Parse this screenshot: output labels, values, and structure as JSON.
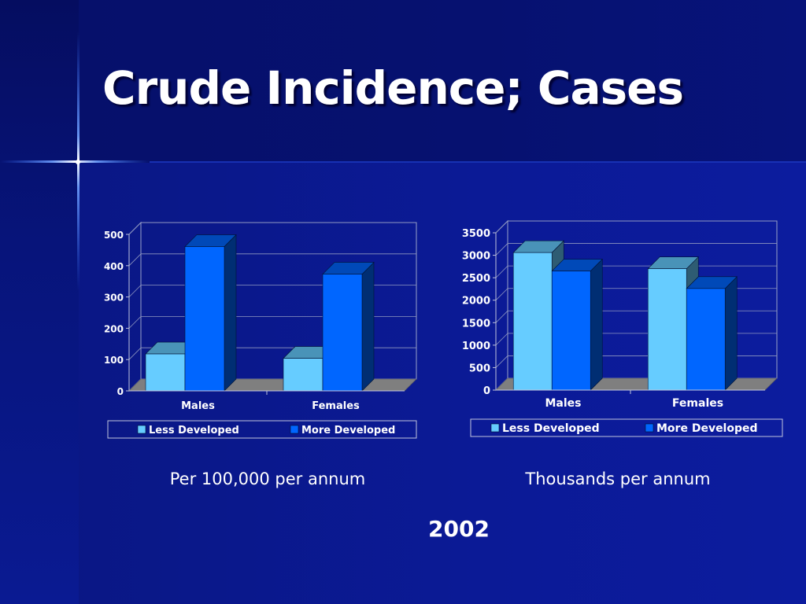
{
  "slide": {
    "title": "Crude Incidence; Cases",
    "year": "2002",
    "caption_left": "Per 100,000 per annum",
    "caption_right": "Thousands per annum"
  },
  "colors": {
    "background": "#0b1a96",
    "less_developed": "#66ccff",
    "more_developed": "#0066ff",
    "floor": "#7f7f7f",
    "text": "#ffffff"
  },
  "chart_data": [
    {
      "type": "bar",
      "categories": [
        "Males",
        "Females"
      ],
      "series": [
        {
          "name": "Less Developed",
          "values": [
            118,
            104
          ]
        },
        {
          "name": "More Developed",
          "values": [
            461,
            373
          ]
        }
      ],
      "ylim": [
        0,
        500
      ],
      "yticks": [
        0,
        100,
        200,
        300,
        400,
        500
      ],
      "grid": true,
      "legend": "bottom",
      "caption": "Per 100,000 per annum"
    },
    {
      "type": "bar",
      "categories": [
        "Males",
        "Females"
      ],
      "series": [
        {
          "name": "Less Developed",
          "values": [
            3060,
            2700
          ]
        },
        {
          "name": "More Developed",
          "values": [
            2650,
            2260
          ]
        }
      ],
      "ylim": [
        0,
        3500
      ],
      "yticks": [
        0,
        500,
        1000,
        1500,
        2000,
        2500,
        3000,
        3500
      ],
      "grid": true,
      "legend": "bottom",
      "caption": "Thousands per annum"
    }
  ]
}
